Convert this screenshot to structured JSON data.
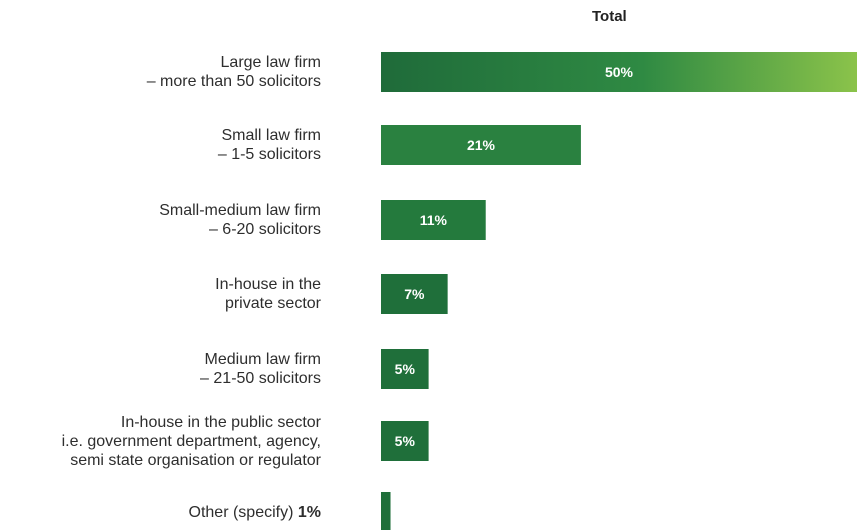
{
  "chart_data": {
    "type": "bar",
    "orientation": "horizontal",
    "column_header": "Total",
    "categories": [
      [
        "Large law firm",
        "– more than 50 solicitors"
      ],
      [
        "Small law firm",
        "– 1-5 solicitors"
      ],
      [
        "Small-medium law firm",
        "– 6-20 solicitors"
      ],
      [
        "In-house in the",
        "private sector"
      ],
      [
        "Medium law firm",
        "– 21-50 solicitors"
      ],
      [
        "In-house in the public sector",
        "i.e. government department, agency,",
        "semi state organisation or regulator"
      ],
      [
        "Other (specify)"
      ]
    ],
    "values": [
      50,
      21,
      11,
      7,
      5,
      5,
      1
    ],
    "value_labels": [
      "50%",
      "21%",
      "11%",
      "7%",
      "5%",
      "5%",
      "1%"
    ],
    "value_label_inside_bar": [
      true,
      true,
      true,
      true,
      true,
      true,
      false
    ],
    "xlim": [
      0,
      50
    ],
    "grid": false,
    "legend": "none",
    "colors": {
      "bar_dark": "#1f6b3a",
      "bar_mid": "#2e8b44",
      "bar_light": "#8bc34a",
      "label_text": "#ffffff"
    }
  }
}
